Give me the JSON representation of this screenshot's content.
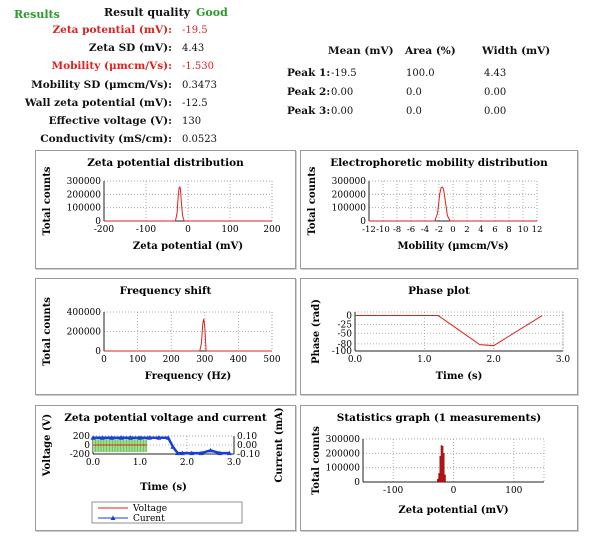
{
  "results": {
    "header_results": "Results",
    "header_quality": "Result quality",
    "header_good": "Good",
    "rows": [
      {
        "label": "Zeta potential (mV):",
        "value": "-19.5",
        "highlight": true
      },
      {
        "label": "Zeta SD (mV):",
        "value": "4.43",
        "highlight": false
      },
      {
        "label": "Mobility (μmcm/Vs):",
        "value": "-1.530",
        "highlight": true
      },
      {
        "label": "Mobility SD (μmcm/Vs):",
        "value": "0.3473",
        "highlight": false
      },
      {
        "label": "Wall zeta potential (mV):",
        "value": "-12.5",
        "highlight": false
      },
      {
        "label": "Effective voltage (V):",
        "value": "130",
        "highlight": false
      },
      {
        "label": "Conductivity (mS/cm):",
        "value": "0.0523",
        "highlight": false
      }
    ]
  },
  "peaks": {
    "headers": [
      "Mean (mV)",
      "Area (%)",
      "Width (mV)"
    ],
    "rows": [
      {
        "label": "Peak 1:",
        "mean": "-19.5",
        "area": "100.0",
        "width": "4.43"
      },
      {
        "label": "Peak 2:",
        "mean": "0.00",
        "area": "0.0",
        "width": "0.00"
      },
      {
        "label": "Peak 3:",
        "mean": "0.00",
        "area": "0.0",
        "width": "0.00"
      }
    ]
  },
  "colors": {
    "accent_red": "#e0201c",
    "good_green": "#2a9a2a",
    "series_red": "#e0201c",
    "series_blue": "#1a3fd8",
    "fill_green": "#9fe08a"
  },
  "chart_data": [
    {
      "id": "zeta-dist",
      "type": "line",
      "title": "Zeta potential distribution",
      "xlabel": "Zeta potential (mV)",
      "ylabel": "Total counts",
      "xlim": [
        -200,
        200
      ],
      "ylim": [
        0,
        300000
      ],
      "xticks": [
        "-200",
        "-100",
        "0",
        "100",
        "200"
      ],
      "yticks": [
        "0",
        "100000",
        "200000",
        "300000"
      ],
      "series": [
        {
          "x": [
            -200,
            -30,
            -26,
            -23,
            -21,
            -19.5,
            -18,
            -16,
            -13,
            -9,
            200
          ],
          "y": [
            0,
            0,
            60000,
            200000,
            250000,
            255000,
            240000,
            150000,
            40000,
            0,
            0
          ]
        }
      ]
    },
    {
      "id": "mobility-dist",
      "type": "line",
      "title": "Electrophoretic mobility distribution",
      "xlabel": "Mobility (μmcm/Vs)",
      "ylabel": "Total counts",
      "xlim": [
        -12,
        12
      ],
      "ylim": [
        0,
        300000
      ],
      "xticks": [
        "-12",
        "-10",
        "-8",
        "-6",
        "-4",
        "-2",
        "0",
        "2",
        "4",
        "6",
        "8",
        "10",
        "12"
      ],
      "yticks": [
        "0",
        "100000",
        "200000",
        "300000"
      ],
      "series": [
        {
          "x": [
            -12,
            -2.6,
            -2.2,
            -1.9,
            -1.7,
            -1.53,
            -1.35,
            -1.1,
            -0.8,
            -0.4,
            12
          ],
          "y": [
            0,
            0,
            60000,
            200000,
            250000,
            255000,
            240000,
            150000,
            40000,
            0,
            0
          ]
        }
      ]
    },
    {
      "id": "freq-shift",
      "type": "line",
      "title": "Frequency shift",
      "xlabel": "Frequency (Hz)",
      "ylabel": "Total counts",
      "xlim": [
        0,
        500
      ],
      "ylim": [
        0,
        400000
      ],
      "xticks": [
        "0",
        "100",
        "200",
        "300",
        "400",
        "500"
      ],
      "yticks": [
        "0",
        "200000",
        "400000"
      ],
      "series": [
        {
          "x": [
            0,
            285,
            290,
            294,
            297,
            300,
            304,
            500
          ],
          "y": [
            0,
            0,
            80000,
            280000,
            330000,
            240000,
            0,
            0
          ]
        }
      ]
    },
    {
      "id": "phase-plot",
      "type": "line",
      "title": "Phase plot",
      "xlabel": "Time (s)",
      "ylabel": "Phase (rad)",
      "xlim": [
        0,
        3.0
      ],
      "ylim": [
        -100,
        10
      ],
      "xticks": [
        "0.0",
        "1.0",
        "2.0",
        "3.0"
      ],
      "yticks": [
        "-100",
        "-80",
        "-50",
        "-25",
        "0"
      ],
      "series": [
        {
          "x": [
            0,
            1.2,
            1.8,
            2.0,
            2.7
          ],
          "y": [
            0,
            0,
            -82,
            -85,
            0
          ]
        }
      ]
    },
    {
      "id": "voltage-current",
      "type": "line",
      "title": "Zeta potential voltage and current",
      "xlabel": "Time (s)",
      "ylabel": "Voltage (V)",
      "y2label": "Current (mA)",
      "xlim": [
        0,
        3.0
      ],
      "ylim": [
        -200,
        200
      ],
      "y2lim": [
        -0.1,
        0.1
      ],
      "xticks": [
        "0.0",
        "1.0",
        "2.0",
        "3.0"
      ],
      "yticks": [
        "-200",
        "0",
        "200"
      ],
      "y2ticks": [
        "-0.10",
        "0.00",
        "0.10"
      ],
      "legend": [
        "Voltage",
        "Curent"
      ],
      "legend_position": "bottom",
      "series": [
        {
          "name": "Voltage",
          "x": [
            0,
            1.15
          ],
          "y": [
            0,
            0
          ]
        },
        {
          "name": "Curent",
          "x": [
            0,
            0.2,
            0.4,
            0.6,
            0.8,
            1.0,
            1.2,
            1.4,
            1.6,
            1.7,
            1.8,
            1.9,
            2.1,
            2.3,
            2.5,
            2.7,
            2.9
          ],
          "y": [
            0.08,
            0.08,
            0.08,
            0.08,
            0.08,
            0.08,
            0.08,
            0.08,
            0.08,
            -0.02,
            -0.09,
            -0.09,
            -0.09,
            -0.09,
            -0.06,
            -0.09,
            -0.09
          ]
        }
      ]
    },
    {
      "id": "stats-graph",
      "type": "bar",
      "title": "Statistics graph (1 measurements)",
      "xlabel": "Zeta potential (mV)",
      "ylabel": "Total counts",
      "xlim": [
        -150,
        150
      ],
      "ylim": [
        0,
        300000
      ],
      "xticks": [
        "-100",
        "0",
        "100"
      ],
      "yticks": [
        "0",
        "100000",
        "200000",
        "300000"
      ],
      "bars": {
        "x": [
          -26,
          -24,
          -22,
          -20,
          -18,
          -16,
          -14
        ],
        "values": [
          20000,
          60000,
          180000,
          255000,
          250000,
          200000,
          50000
        ]
      }
    }
  ]
}
